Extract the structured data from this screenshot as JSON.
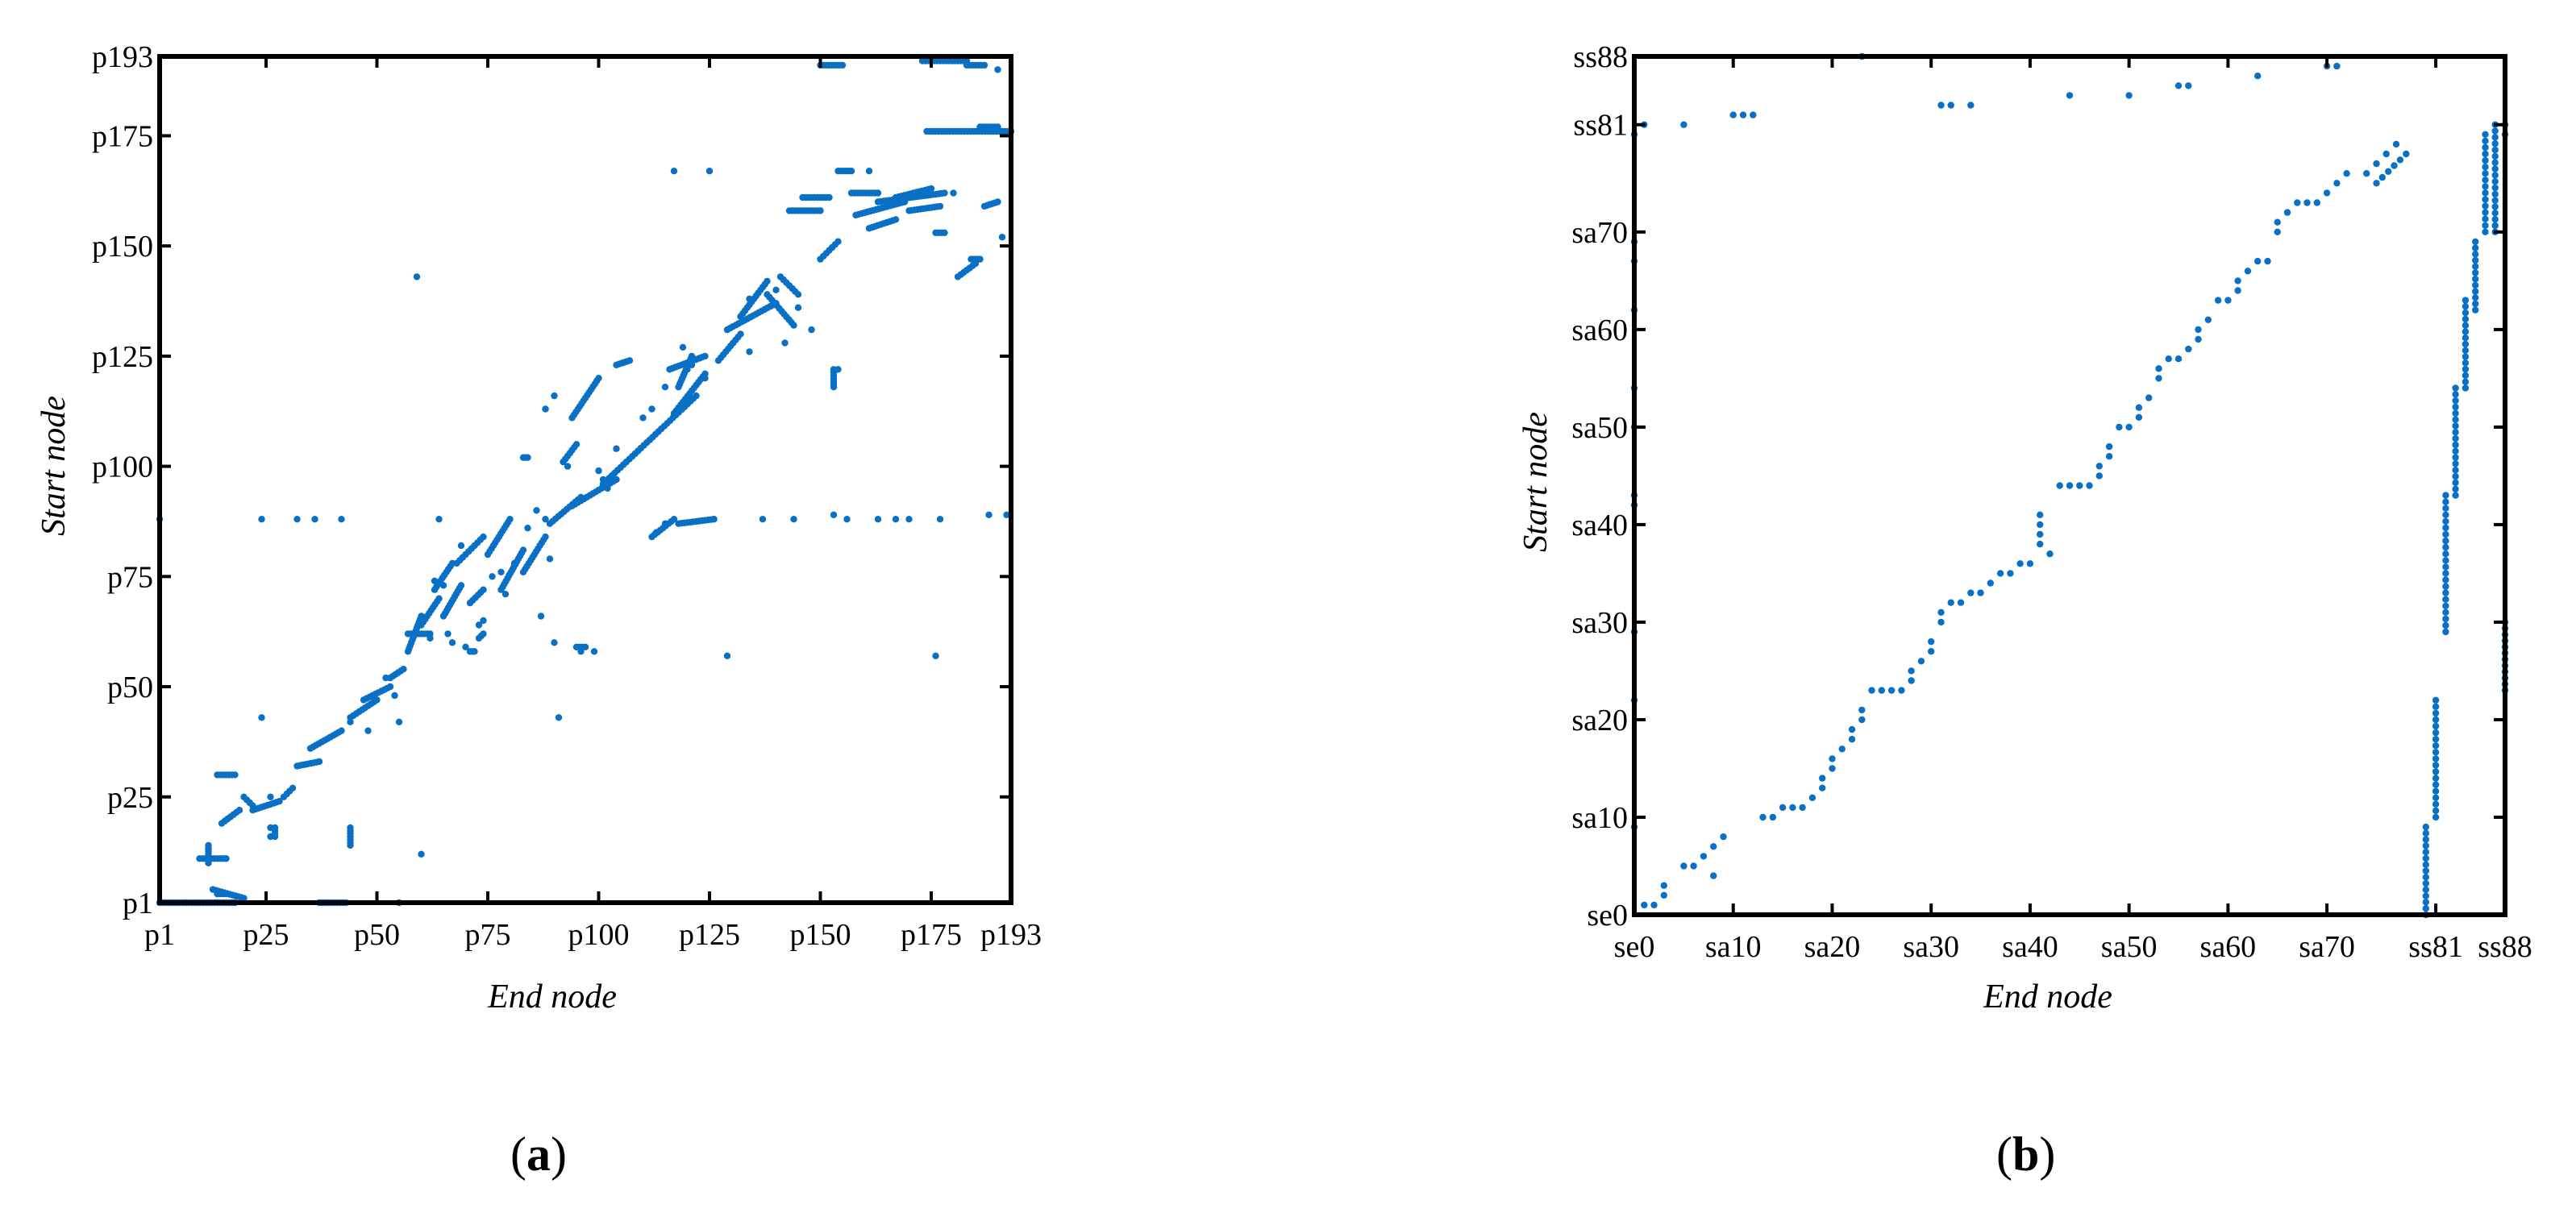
{
  "colors": {
    "marker": "#0a70c6",
    "axes": "#000000"
  },
  "captions": {
    "a": "a",
    "b": "b"
  },
  "chart_data": [
    {
      "type": "scatter",
      "panel": "a",
      "xlabel": "End node",
      "ylabel": "Start node",
      "xlim": [
        1,
        193
      ],
      "ylim": [
        1,
        193
      ],
      "xticks": [
        1,
        25,
        50,
        75,
        100,
        125,
        150,
        175,
        193
      ],
      "xtick_labels": [
        "p1",
        "p25",
        "p50",
        "p75",
        "p100",
        "p125",
        "p150",
        "p175",
        "p193"
      ],
      "yticks": [
        1,
        25,
        50,
        75,
        100,
        125,
        150,
        175,
        193
      ],
      "ytick_labels": [
        "p1",
        "p25",
        "p50",
        "p75",
        "p100",
        "p125",
        "p150",
        "p175",
        "p193"
      ],
      "grid": false,
      "segments": [
        [
          1,
          1,
          18,
          1
        ],
        [
          10,
          11,
          16,
          11
        ],
        [
          12,
          10,
          12,
          14
        ],
        [
          14,
          3,
          16,
          3
        ],
        [
          13,
          4,
          20,
          2
        ],
        [
          14,
          30,
          18,
          30
        ],
        [
          15,
          19,
          19,
          22
        ],
        [
          20,
          25,
          22,
          23
        ],
        [
          22,
          22,
          28,
          24
        ],
        [
          27,
          16,
          27,
          18
        ],
        [
          29,
          25,
          31,
          27
        ],
        [
          32,
          32,
          37,
          33
        ],
        [
          35,
          36,
          42,
          40
        ],
        [
          37,
          1,
          43,
          1
        ],
        [
          44,
          43,
          50,
          47
        ],
        [
          44,
          14,
          44,
          18
        ],
        [
          47,
          47,
          53,
          50
        ],
        [
          53,
          52,
          56,
          54
        ],
        [
          57,
          58,
          60,
          66
        ],
        [
          57,
          62,
          62,
          62
        ],
        [
          60,
          64,
          64,
          70
        ],
        [
          63,
          72,
          67,
          78
        ],
        [
          65,
          66,
          69,
          73
        ],
        [
          68,
          78,
          74,
          84
        ],
        [
          71,
          69,
          74,
          72
        ],
        [
          71,
          58,
          72,
          58
        ],
        [
          73,
          61,
          74,
          62
        ],
        [
          75,
          80,
          80,
          88
        ],
        [
          78,
          72,
          83,
          81
        ],
        [
          83,
          76,
          88,
          84
        ],
        [
          83,
          102,
          84,
          102
        ],
        [
          89,
          87,
          96,
          93
        ],
        [
          92,
          101,
          95,
          105
        ],
        [
          94,
          91,
          104,
          97
        ],
        [
          95,
          59,
          97,
          59
        ],
        [
          94,
          111,
          100,
          120
        ],
        [
          104,
          123,
          107,
          124
        ],
        [
          101,
          96,
          122,
          116
        ],
        [
          112,
          84,
          117,
          88
        ],
        [
          117,
          112,
          124,
          121
        ],
        [
          116,
          122,
          124,
          125
        ],
        [
          118,
          87,
          126,
          88
        ],
        [
          118,
          118,
          121,
          125
        ],
        [
          127,
          124,
          132,
          130
        ],
        [
          129,
          131,
          140,
          137
        ],
        [
          132,
          134,
          138,
          142
        ],
        [
          138,
          139,
          144,
          132
        ],
        [
          141,
          143,
          145,
          139
        ],
        [
          146,
          161,
          152,
          161
        ],
        [
          150,
          147,
          154,
          151
        ],
        [
          153,
          118,
          153,
          122
        ],
        [
          154,
          167,
          157,
          167
        ],
        [
          157,
          162,
          163,
          162
        ],
        [
          158,
          157,
          169,
          160
        ],
        [
          161,
          154,
          167,
          156
        ],
        [
          163,
          160,
          178,
          162
        ],
        [
          167,
          161,
          175,
          163
        ],
        [
          170,
          158,
          177,
          159
        ],
        [
          174,
          176,
          193,
          176
        ],
        [
          176,
          153,
          178,
          153
        ],
        [
          181,
          143,
          185,
          146
        ],
        [
          184,
          147,
          186,
          147
        ],
        [
          186,
          177,
          190,
          177
        ],
        [
          187,
          159,
          190,
          160
        ],
        [
          150,
          191,
          155,
          191
        ],
        [
          173,
          192,
          183,
          192
        ],
        [
          183,
          191,
          187,
          191
        ],
        [
          143,
          158,
          150,
          158
        ]
      ],
      "points": [
        [
          1,
          88
        ],
        [
          7,
          1
        ],
        [
          12,
          13
        ],
        [
          24,
          88
        ],
        [
          24,
          43
        ],
        [
          26,
          25
        ],
        [
          26,
          18
        ],
        [
          26,
          16
        ],
        [
          32,
          88
        ],
        [
          36,
          88
        ],
        [
          42,
          88
        ],
        [
          44,
          42
        ],
        [
          48,
          40
        ],
        [
          52,
          52
        ],
        [
          54,
          48
        ],
        [
          55,
          1
        ],
        [
          60,
          12
        ],
        [
          62,
          61
        ],
        [
          63,
          74
        ],
        [
          64,
          88
        ],
        [
          65,
          73
        ],
        [
          66,
          62
        ],
        [
          67,
          60
        ],
        [
          69,
          82
        ],
        [
          70,
          59
        ],
        [
          73,
          64
        ],
        [
          74,
          65
        ],
        [
          76,
          75
        ],
        [
          78,
          76
        ],
        [
          79,
          71
        ],
        [
          81,
          78
        ],
        [
          84,
          86
        ],
        [
          86,
          90
        ],
        [
          87,
          66
        ],
        [
          88,
          88
        ],
        [
          89,
          79
        ],
        [
          91,
          43
        ],
        [
          93,
          100
        ],
        [
          96,
          58
        ],
        [
          100,
          99
        ],
        [
          101,
          97
        ],
        [
          104,
          104
        ],
        [
          110,
          111
        ],
        [
          112,
          113
        ],
        [
          115,
          118
        ],
        [
          117,
          167
        ],
        [
          119,
          127
        ],
        [
          120,
          122
        ],
        [
          121,
          123
        ],
        [
          124,
          120
        ],
        [
          125,
          167
        ],
        [
          126,
          88
        ],
        [
          129,
          57
        ],
        [
          134,
          138
        ],
        [
          137,
          88
        ],
        [
          142,
          128
        ],
        [
          144,
          88
        ],
        [
          145,
          136
        ],
        [
          148,
          131
        ],
        [
          153,
          89
        ],
        [
          154,
          122
        ],
        [
          156,
          88
        ],
        [
          161,
          167
        ],
        [
          163,
          88
        ],
        [
          167,
          88
        ],
        [
          170,
          88
        ],
        [
          176,
          57
        ],
        [
          177,
          88
        ],
        [
          180,
          162
        ],
        [
          188,
          89
        ],
        [
          190,
          190
        ],
        [
          191,
          152
        ],
        [
          192,
          89
        ],
        [
          59,
          143
        ],
        [
          88,
          113
        ],
        [
          90,
          116
        ],
        [
          55,
          42
        ],
        [
          102,
          95
        ],
        [
          103,
          97
        ],
        [
          90,
          60
        ],
        [
          99,
          58
        ],
        [
          134,
          126
        ],
        [
          140,
          140
        ],
        [
          115,
          87
        ],
        [
          113,
          85
        ]
      ]
    },
    {
      "type": "scatter",
      "panel": "b",
      "xlabel": "End node",
      "ylabel": "Start node",
      "xlim": [
        0,
        88
      ],
      "ylim": [
        0,
        88
      ],
      "xticks": [
        0,
        10,
        20,
        30,
        40,
        50,
        60,
        70,
        81,
        88
      ],
      "xtick_labels": [
        "se0",
        "sa10",
        "sa20",
        "sa30",
        "sa40",
        "sa50",
        "sa60",
        "sa70",
        "ss81",
        "ss88"
      ],
      "yticks": [
        0,
        10,
        20,
        30,
        40,
        50,
        60,
        70,
        81,
        88
      ],
      "ytick_labels": [
        "se0",
        "sa10",
        "sa20",
        "sa30",
        "sa40",
        "sa50",
        "sa60",
        "sa70",
        "ss81",
        "ss88"
      ],
      "grid": false,
      "segments": [
        [
          80,
          0,
          80,
          9
        ],
        [
          81,
          10,
          81,
          22
        ],
        [
          82,
          29,
          82,
          43
        ],
        [
          83,
          43,
          83,
          54
        ],
        [
          84,
          54,
          84,
          63
        ],
        [
          85,
          62,
          85,
          69
        ],
        [
          86,
          70,
          86,
          80
        ],
        [
          87,
          70,
          87,
          81
        ],
        [
          88,
          23,
          88,
          30
        ],
        [
          75,
          75,
          78,
          78
        ]
      ],
      "points": [
        [
          1,
          1
        ],
        [
          2,
          1
        ],
        [
          3,
          2
        ],
        [
          3,
          3
        ],
        [
          5,
          5
        ],
        [
          6,
          5
        ],
        [
          7,
          6
        ],
        [
          8,
          7
        ],
        [
          8,
          4
        ],
        [
          9,
          8
        ],
        [
          0,
          9
        ],
        [
          0,
          22
        ],
        [
          0,
          29
        ],
        [
          0,
          42
        ],
        [
          0,
          43
        ],
        [
          0,
          50
        ],
        [
          0,
          54
        ],
        [
          0,
          62
        ],
        [
          0,
          67
        ],
        [
          0,
          69
        ],
        [
          0,
          80
        ],
        [
          1,
          81
        ],
        [
          5,
          81
        ],
        [
          10,
          82
        ],
        [
          11,
          82
        ],
        [
          12,
          82
        ],
        [
          13,
          10
        ],
        [
          14,
          10
        ],
        [
          15,
          11
        ],
        [
          16,
          11
        ],
        [
          17,
          11
        ],
        [
          18,
          12
        ],
        [
          19,
          13
        ],
        [
          19,
          14
        ],
        [
          20,
          15
        ],
        [
          20,
          16
        ],
        [
          21,
          17
        ],
        [
          22,
          18
        ],
        [
          22,
          19
        ],
        [
          23,
          20
        ],
        [
          23,
          21
        ],
        [
          24,
          23
        ],
        [
          25,
          23
        ],
        [
          26,
          23
        ],
        [
          27,
          23
        ],
        [
          28,
          24
        ],
        [
          28,
          25
        ],
        [
          29,
          26
        ],
        [
          30,
          27
        ],
        [
          30,
          28
        ],
        [
          31,
          30
        ],
        [
          31,
          31
        ],
        [
          32,
          32
        ],
        [
          33,
          32
        ],
        [
          34,
          33
        ],
        [
          35,
          33
        ],
        [
          36,
          34
        ],
        [
          37,
          35
        ],
        [
          38,
          35
        ],
        [
          39,
          36
        ],
        [
          40,
          36
        ],
        [
          41,
          38
        ],
        [
          41,
          39
        ],
        [
          41,
          40
        ],
        [
          41,
          41
        ],
        [
          42,
          37
        ],
        [
          43,
          44
        ],
        [
          44,
          44
        ],
        [
          45,
          44
        ],
        [
          46,
          44
        ],
        [
          47,
          45
        ],
        [
          47,
          46
        ],
        [
          48,
          47
        ],
        [
          48,
          48
        ],
        [
          49,
          50
        ],
        [
          50,
          50
        ],
        [
          51,
          51
        ],
        [
          51,
          52
        ],
        [
          52,
          53
        ],
        [
          53,
          55
        ],
        [
          53,
          56
        ],
        [
          54,
          57
        ],
        [
          55,
          57
        ],
        [
          56,
          58
        ],
        [
          57,
          59
        ],
        [
          57,
          60
        ],
        [
          58,
          61
        ],
        [
          59,
          63
        ],
        [
          60,
          63
        ],
        [
          61,
          64
        ],
        [
          61,
          65
        ],
        [
          62,
          66
        ],
        [
          63,
          67
        ],
        [
          64,
          67
        ],
        [
          65,
          70
        ],
        [
          65,
          71
        ],
        [
          66,
          72
        ],
        [
          67,
          73
        ],
        [
          68,
          73
        ],
        [
          69,
          73
        ],
        [
          70,
          74
        ],
        [
          71,
          75
        ],
        [
          72,
          76
        ],
        [
          75,
          77
        ],
        [
          74,
          76
        ],
        [
          76,
          78
        ],
        [
          77,
          79
        ],
        [
          23,
          88
        ],
        [
          31,
          83
        ],
        [
          32,
          83
        ],
        [
          34,
          83
        ],
        [
          44,
          84
        ],
        [
          50,
          84
        ],
        [
          55,
          85
        ],
        [
          56,
          85
        ],
        [
          63,
          86
        ],
        [
          70,
          87
        ],
        [
          71,
          87
        ],
        [
          88,
          80
        ],
        [
          88,
          81
        ]
      ]
    }
  ]
}
